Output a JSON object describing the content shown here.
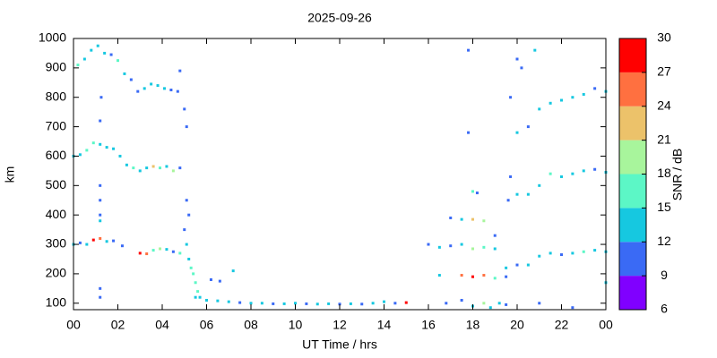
{
  "chart_data": {
    "type": "scatter",
    "title": "2025-09-26",
    "x_label": "UT Time / hrs",
    "y_label": "km",
    "xlim": [
      0,
      24
    ],
    "xticks": [
      {
        "value": 0,
        "label": "00"
      },
      {
        "value": 2,
        "label": "02"
      },
      {
        "value": 4,
        "label": "04"
      },
      {
        "value": 6,
        "label": "06"
      },
      {
        "value": 8,
        "label": "08"
      },
      10,
      12,
      14,
      16,
      18,
      20,
      22,
      {
        "value": 24,
        "label": "00"
      }
    ],
    "ylim": [
      78,
      1000
    ],
    "yticks": [
      100,
      200,
      300,
      400,
      500,
      600,
      700,
      800,
      900,
      1000
    ],
    "colorbar": {
      "label": "SNR / dB",
      "lim": [
        6,
        30
      ],
      "ticks": [
        6,
        9,
        12,
        15,
        18,
        21,
        24,
        27,
        30
      ],
      "colors": [
        "#8000ff",
        "#3a6af5",
        "#16c8e0",
        "#5cf7c6",
        "#a8f59c",
        "#ecc26a",
        "#ff7040",
        "#ff0000"
      ]
    },
    "points": [
      {
        "x": 0,
        "y": 300,
        "snr": 12
      },
      {
        "x": 0.3,
        "y": 305,
        "snr": 10
      },
      {
        "x": 0.6,
        "y": 300,
        "snr": 14
      },
      {
        "x": 0.9,
        "y": 315,
        "snr": 27
      },
      {
        "x": 1.2,
        "y": 320,
        "snr": 25
      },
      {
        "x": 1.5,
        "y": 310,
        "snr": 14
      },
      {
        "x": 1.8,
        "y": 312,
        "snr": 10
      },
      {
        "x": 2.2,
        "y": 295,
        "snr": 10
      },
      {
        "x": 3.0,
        "y": 270,
        "snr": 27
      },
      {
        "x": 3.3,
        "y": 268,
        "snr": 26
      },
      {
        "x": 3.6,
        "y": 280,
        "snr": 15
      },
      {
        "x": 3.9,
        "y": 285,
        "snr": 20
      },
      {
        "x": 4.2,
        "y": 283,
        "snr": 14
      },
      {
        "x": 4.5,
        "y": 275,
        "snr": 10
      },
      {
        "x": 4.8,
        "y": 270,
        "snr": 15
      },
      {
        "x": 0,
        "y": 600,
        "snr": 13
      },
      {
        "x": 0.3,
        "y": 605,
        "snr": 12
      },
      {
        "x": 0.6,
        "y": 620,
        "snr": 15
      },
      {
        "x": 0.9,
        "y": 645,
        "snr": 16
      },
      {
        "x": 1.2,
        "y": 640,
        "snr": 14
      },
      {
        "x": 1.5,
        "y": 630,
        "snr": 13
      },
      {
        "x": 1.8,
        "y": 625,
        "snr": 12
      },
      {
        "x": 2.1,
        "y": 600,
        "snr": 14
      },
      {
        "x": 2.4,
        "y": 570,
        "snr": 13
      },
      {
        "x": 2.7,
        "y": 560,
        "snr": 16
      },
      {
        "x": 3.0,
        "y": 550,
        "snr": 13
      },
      {
        "x": 3.3,
        "y": 560,
        "snr": 14
      },
      {
        "x": 3.6,
        "y": 565,
        "snr": 22
      },
      {
        "x": 3.9,
        "y": 560,
        "snr": 15
      },
      {
        "x": 4.2,
        "y": 565,
        "snr": 13
      },
      {
        "x": 4.5,
        "y": 550,
        "snr": 20
      },
      {
        "x": 4.8,
        "y": 560,
        "snr": 10
      },
      {
        "x": 0.2,
        "y": 910,
        "snr": 16
      },
      {
        "x": 0.5,
        "y": 930,
        "snr": 14
      },
      {
        "x": 0.8,
        "y": 960,
        "snr": 12
      },
      {
        "x": 1.1,
        "y": 975,
        "snr": 14
      },
      {
        "x": 1.4,
        "y": 950,
        "snr": 13
      },
      {
        "x": 1.7,
        "y": 945,
        "snr": 10
      },
      {
        "x": 2.0,
        "y": 925,
        "snr": 15
      },
      {
        "x": 2.3,
        "y": 880,
        "snr": 12
      },
      {
        "x": 2.6,
        "y": 860,
        "snr": 10
      },
      {
        "x": 2.9,
        "y": 820,
        "snr": 10
      },
      {
        "x": 3.2,
        "y": 830,
        "snr": 14
      },
      {
        "x": 3.5,
        "y": 845,
        "snr": 13
      },
      {
        "x": 3.8,
        "y": 840,
        "snr": 12
      },
      {
        "x": 4.1,
        "y": 830,
        "snr": 13
      },
      {
        "x": 4.4,
        "y": 825,
        "snr": 10
      },
      {
        "x": 4.7,
        "y": 820,
        "snr": 10
      },
      {
        "x": 4.8,
        "y": 890,
        "snr": 10
      },
      {
        "x": 1.2,
        "y": 500,
        "snr": 10
      },
      {
        "x": 1.2,
        "y": 450,
        "snr": 10
      },
      {
        "x": 1.2,
        "y": 400,
        "snr": 10
      },
      {
        "x": 1.2,
        "y": 380,
        "snr": 12
      },
      {
        "x": 1.25,
        "y": 800,
        "snr": 10
      },
      {
        "x": 1.2,
        "y": 720,
        "snr": 10
      },
      {
        "x": 1.2,
        "y": 150,
        "snr": 10
      },
      {
        "x": 1.2,
        "y": 120,
        "snr": 10
      },
      {
        "x": 5.0,
        "y": 760,
        "snr": 10
      },
      {
        "x": 5.1,
        "y": 700,
        "snr": 10
      },
      {
        "x": 5.1,
        "y": 450,
        "snr": 10
      },
      {
        "x": 5.2,
        "y": 400,
        "snr": 11
      },
      {
        "x": 5.0,
        "y": 350,
        "snr": 10
      },
      {
        "x": 5.1,
        "y": 300,
        "snr": 12
      },
      {
        "x": 5.2,
        "y": 250,
        "snr": 14
      },
      {
        "x": 5.3,
        "y": 220,
        "snr": 15
      },
      {
        "x": 5.4,
        "y": 200,
        "snr": 16
      },
      {
        "x": 5.5,
        "y": 170,
        "snr": 15
      },
      {
        "x": 5.6,
        "y": 140,
        "snr": 17
      },
      {
        "x": 5.7,
        "y": 120,
        "snr": 13
      },
      {
        "x": 5.5,
        "y": 120,
        "snr": 14
      },
      {
        "x": 6,
        "y": 110,
        "snr": 13
      },
      {
        "x": 6.5,
        "y": 108,
        "snr": 12
      },
      {
        "x": 7,
        "y": 105,
        "snr": 14
      },
      {
        "x": 7.5,
        "y": 102,
        "snr": 10
      },
      {
        "x": 8,
        "y": 100,
        "snr": 13
      },
      {
        "x": 8.5,
        "y": 100,
        "snr": 12
      },
      {
        "x": 9,
        "y": 98,
        "snr": 10
      },
      {
        "x": 9.5,
        "y": 98,
        "snr": 14
      },
      {
        "x": 10,
        "y": 100,
        "snr": 12
      },
      {
        "x": 10.5,
        "y": 98,
        "snr": 10
      },
      {
        "x": 11,
        "y": 97,
        "snr": 13
      },
      {
        "x": 11.5,
        "y": 98,
        "snr": 12
      },
      {
        "x": 12,
        "y": 97,
        "snr": 10
      },
      {
        "x": 12.5,
        "y": 98,
        "snr": 14
      },
      {
        "x": 13,
        "y": 97,
        "snr": 10
      },
      {
        "x": 13.5,
        "y": 100,
        "snr": 12
      },
      {
        "x": 14,
        "y": 105,
        "snr": 13
      },
      {
        "x": 14.5,
        "y": 100,
        "snr": 10
      },
      {
        "x": 15,
        "y": 102,
        "snr": 27
      },
      {
        "x": 6.2,
        "y": 180,
        "snr": 10
      },
      {
        "x": 6.6,
        "y": 175,
        "snr": 10
      },
      {
        "x": 7.2,
        "y": 210,
        "snr": 14
      },
      {
        "x": 16,
        "y": 300,
        "snr": 10
      },
      {
        "x": 16.5,
        "y": 290,
        "snr": 12
      },
      {
        "x": 17,
        "y": 295,
        "snr": 10
      },
      {
        "x": 17.5,
        "y": 300,
        "snr": 14
      },
      {
        "x": 18,
        "y": 285,
        "snr": 20
      },
      {
        "x": 18.5,
        "y": 290,
        "snr": 15
      },
      {
        "x": 19,
        "y": 285,
        "snr": 12
      },
      {
        "x": 19.5,
        "y": 190,
        "snr": 10
      },
      {
        "x": 16.5,
        "y": 195,
        "snr": 13
      },
      {
        "x": 17.5,
        "y": 195,
        "snr": 25
      },
      {
        "x": 18,
        "y": 190,
        "snr": 27
      },
      {
        "x": 18.5,
        "y": 195,
        "snr": 26
      },
      {
        "x": 19,
        "y": 185,
        "snr": 16
      },
      {
        "x": 19.5,
        "y": 220,
        "snr": 14
      },
      {
        "x": 20,
        "y": 230,
        "snr": 10
      },
      {
        "x": 20.5,
        "y": 230,
        "snr": 12
      },
      {
        "x": 21,
        "y": 260,
        "snr": 13
      },
      {
        "x": 21.5,
        "y": 270,
        "snr": 14
      },
      {
        "x": 22,
        "y": 265,
        "snr": 10
      },
      {
        "x": 22.5,
        "y": 270,
        "snr": 13
      },
      {
        "x": 23,
        "y": 275,
        "snr": 15
      },
      {
        "x": 23.5,
        "y": 280,
        "snr": 12
      },
      {
        "x": 24,
        "y": 275,
        "snr": 12
      },
      {
        "x": 17,
        "y": 390,
        "snr": 10
      },
      {
        "x": 17.5,
        "y": 385,
        "snr": 12
      },
      {
        "x": 18,
        "y": 385,
        "snr": 22
      },
      {
        "x": 18.5,
        "y": 380,
        "snr": 20
      },
      {
        "x": 19,
        "y": 330,
        "snr": 10
      },
      {
        "x": 18,
        "y": 480,
        "snr": 16
      },
      {
        "x": 18.2,
        "y": 475,
        "snr": 10
      },
      {
        "x": 19.6,
        "y": 450,
        "snr": 10
      },
      {
        "x": 20,
        "y": 470,
        "snr": 13
      },
      {
        "x": 20.5,
        "y": 470,
        "snr": 12
      },
      {
        "x": 21,
        "y": 500,
        "snr": 12
      },
      {
        "x": 21.5,
        "y": 540,
        "snr": 16
      },
      {
        "x": 22,
        "y": 530,
        "snr": 13
      },
      {
        "x": 22.5,
        "y": 540,
        "snr": 12
      },
      {
        "x": 23,
        "y": 550,
        "snr": 13
      },
      {
        "x": 23.5,
        "y": 555,
        "snr": 10
      },
      {
        "x": 24,
        "y": 545,
        "snr": 13
      },
      {
        "x": 20,
        "y": 680,
        "snr": 14
      },
      {
        "x": 20.5,
        "y": 700,
        "snr": 10
      },
      {
        "x": 21,
        "y": 760,
        "snr": 14
      },
      {
        "x": 21.5,
        "y": 780,
        "snr": 13
      },
      {
        "x": 22,
        "y": 790,
        "snr": 14
      },
      {
        "x": 22.5,
        "y": 800,
        "snr": 12
      },
      {
        "x": 23,
        "y": 810,
        "snr": 13
      },
      {
        "x": 23.5,
        "y": 830,
        "snr": 10
      },
      {
        "x": 24,
        "y": 820,
        "snr": 14
      },
      {
        "x": 20,
        "y": 930,
        "snr": 10
      },
      {
        "x": 20.2,
        "y": 900,
        "snr": 10
      },
      {
        "x": 20.8,
        "y": 960,
        "snr": 14
      },
      {
        "x": 17.8,
        "y": 960,
        "snr": 10
      },
      {
        "x": 17.8,
        "y": 680,
        "snr": 10
      },
      {
        "x": 19.7,
        "y": 800,
        "snr": 10
      },
      {
        "x": 19.7,
        "y": 530,
        "snr": 10
      },
      {
        "x": 16.8,
        "y": 100,
        "snr": 10
      },
      {
        "x": 17.5,
        "y": 110,
        "snr": 10
      },
      {
        "x": 18,
        "y": 90,
        "snr": 13
      },
      {
        "x": 18.5,
        "y": 100,
        "snr": 20
      },
      {
        "x": 18.8,
        "y": 85,
        "snr": 12
      },
      {
        "x": 19.2,
        "y": 100,
        "snr": 14
      },
      {
        "x": 19.5,
        "y": 95,
        "snr": 10
      },
      {
        "x": 21,
        "y": 100,
        "snr": 10
      },
      {
        "x": 22.5,
        "y": 85,
        "snr": 10
      },
      {
        "x": 24,
        "y": 170,
        "snr": 14
      }
    ]
  }
}
